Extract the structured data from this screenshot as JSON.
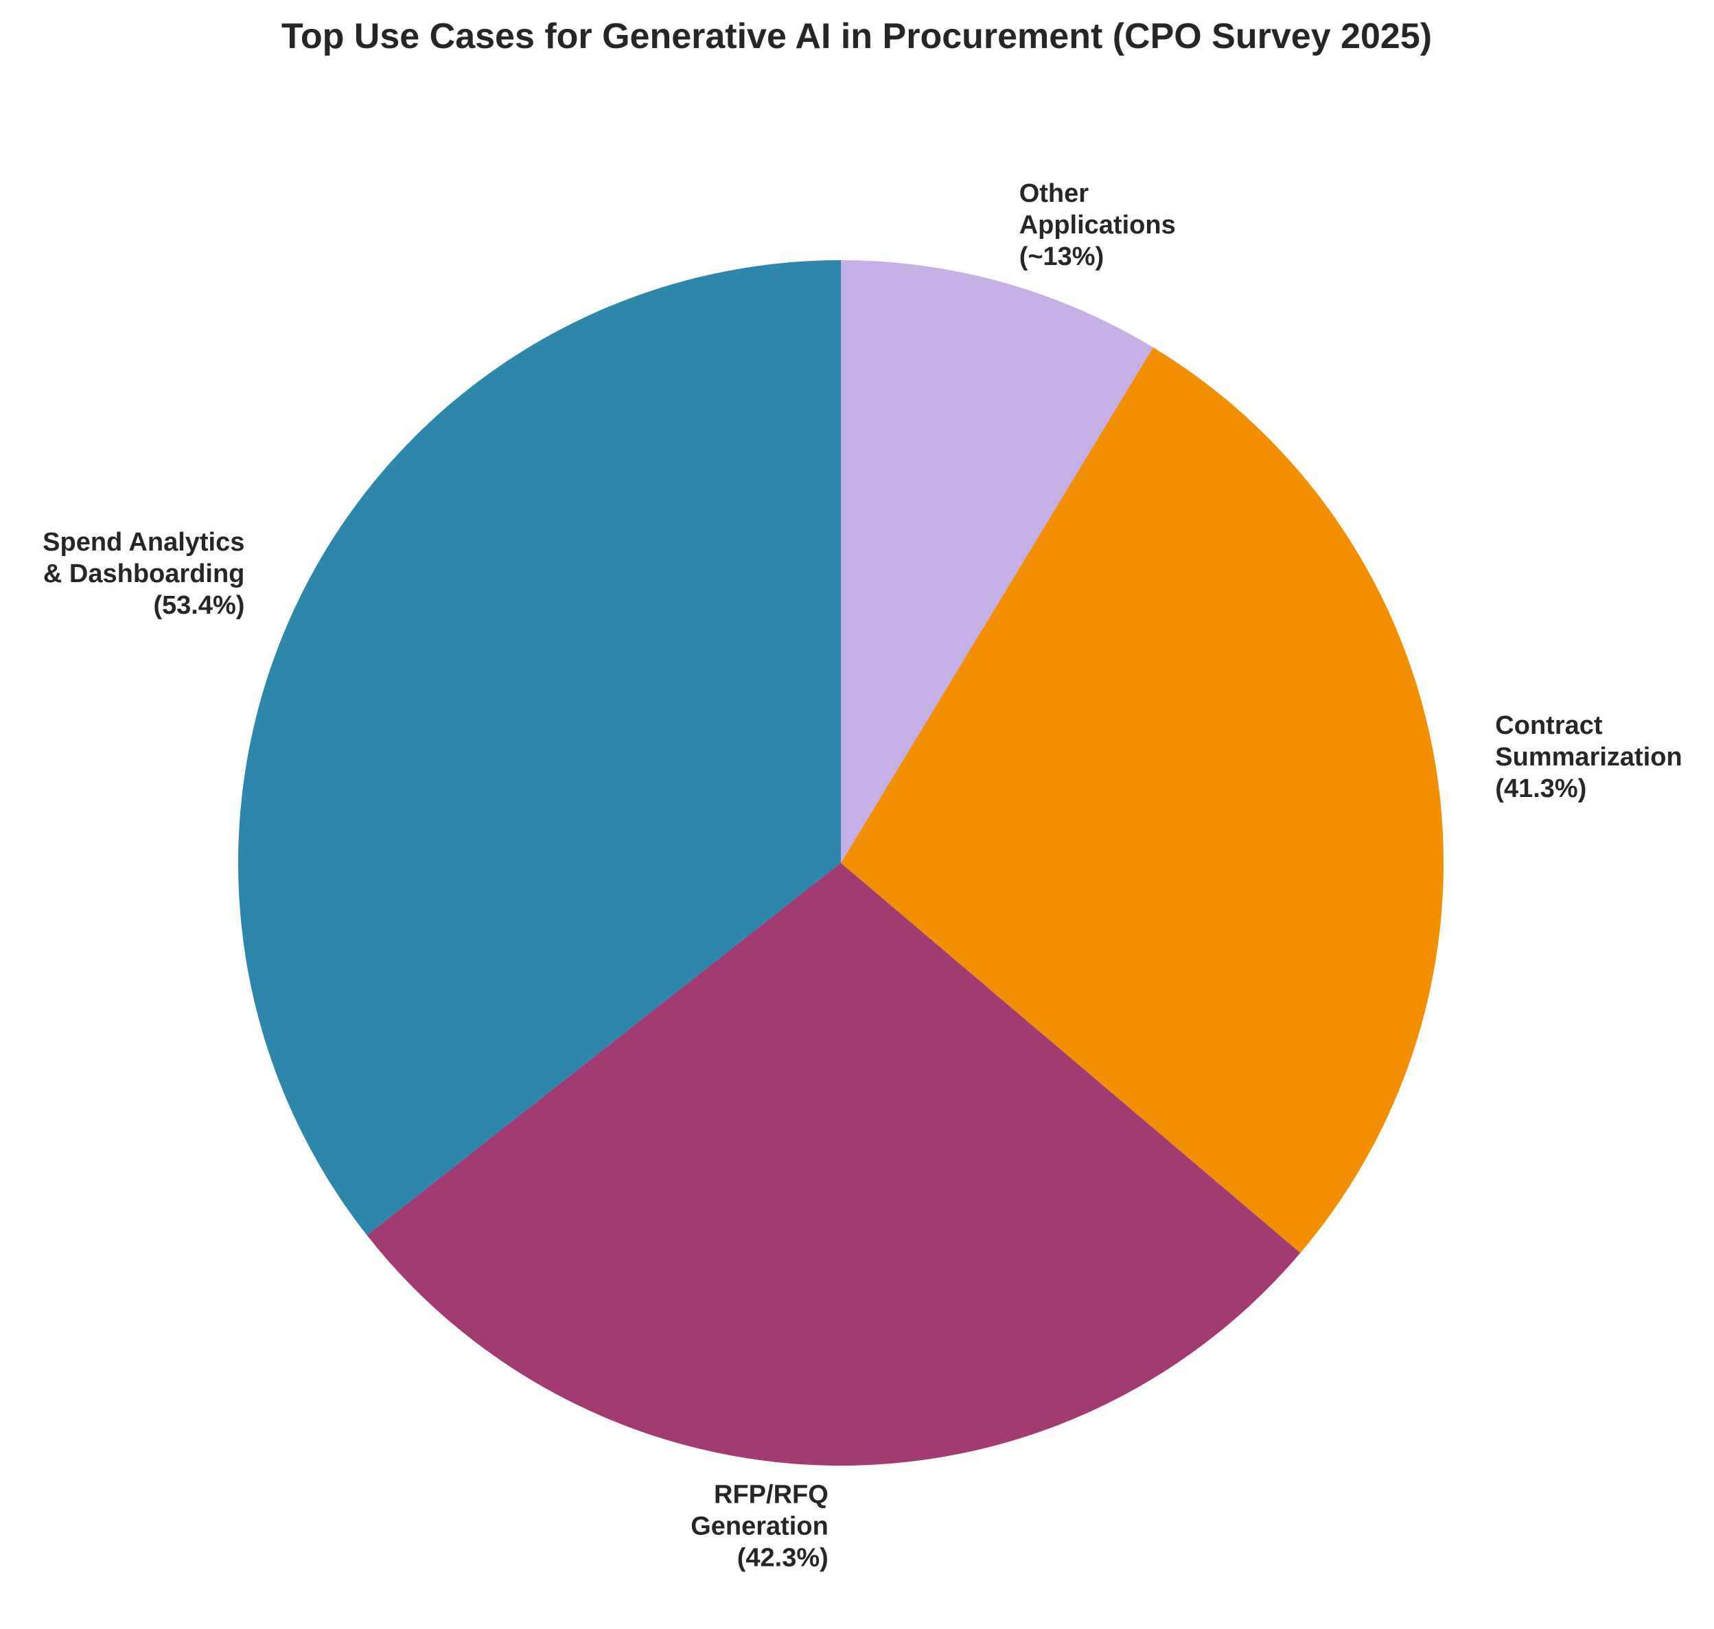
{
  "chart_data": {
    "type": "pie",
    "title": "Top Use Cases for Generative AI in Procurement (CPO Survey 2025)",
    "slices": [
      {
        "name": "Spend Analytics & Dashboarding",
        "label_lines": [
          "Spend Analytics",
          "& Dashboarding",
          "(53.4%)"
        ],
        "value": 53.4,
        "color": "#2E86AB"
      },
      {
        "name": "RFP/RFQ Generation",
        "label_lines": [
          "RFP/RFQ",
          "Generation",
          "(42.3%)"
        ],
        "value": 42.3,
        "color": "#A23B72"
      },
      {
        "name": "Contract Summarization",
        "label_lines": [
          "Contract",
          "Summarization",
          "(41.3%)"
        ],
        "value": 41.3,
        "color": "#F18F01"
      },
      {
        "name": "Other Applications",
        "label_lines": [
          "Other",
          "Applications",
          "(~13%)"
        ],
        "value": 13,
        "color": "#C5B0E5"
      }
    ],
    "start_angle": "top",
    "direction": "counterclockwise",
    "legend": "none"
  }
}
